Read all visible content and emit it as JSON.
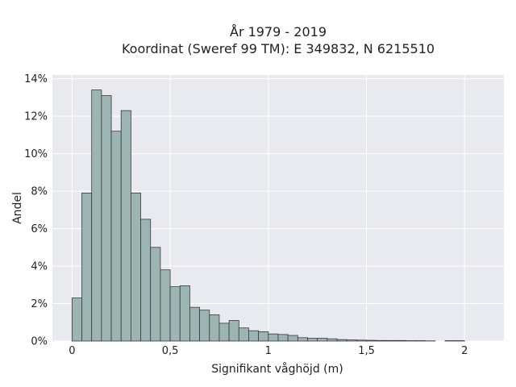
{
  "chart_data": {
    "type": "bar",
    "title_lines": [
      "År 1979 - 2019",
      "Koordinat (Sweref 99 TM): E 349832, N 6215510"
    ],
    "xlabel": "Signifikant våghöjd (m)",
    "ylabel": "Andel",
    "xlim": [
      -0.1,
      2.2
    ],
    "ylim": [
      0,
      14.2
    ],
    "x_ticks": [
      0,
      0.5,
      1,
      1.5,
      2
    ],
    "x_tick_labels": [
      "0",
      "0,5",
      "1",
      "1,5",
      "2"
    ],
    "y_ticks": [
      0,
      2,
      4,
      6,
      8,
      10,
      12,
      14
    ],
    "y_tick_labels": [
      "0%",
      "2%",
      "4%",
      "6%",
      "8%",
      "10%",
      "12%",
      "14%"
    ],
    "grid": true,
    "bin_width": 0.05,
    "bin_starts": [
      0,
      0.05,
      0.1,
      0.15,
      0.2,
      0.25,
      0.3,
      0.35,
      0.4,
      0.45,
      0.5,
      0.55,
      0.6,
      0.65,
      0.7,
      0.75,
      0.8,
      0.85,
      0.9,
      0.95,
      1.0,
      1.05,
      1.1,
      1.15,
      1.2,
      1.25,
      1.3,
      1.35,
      1.4,
      1.45,
      1.5,
      1.55,
      1.6,
      1.65,
      1.7,
      1.75,
      1.8,
      1.85,
      1.9,
      1.95,
      2.0,
      2.05
    ],
    "values": [
      2.3,
      7.9,
      13.4,
      13.1,
      11.2,
      12.3,
      7.9,
      6.5,
      5.0,
      3.8,
      2.9,
      2.95,
      1.8,
      1.65,
      1.4,
      0.95,
      1.1,
      0.7,
      0.55,
      0.5,
      0.38,
      0.35,
      0.3,
      0.18,
      0.15,
      0.15,
      0.12,
      0.08,
      0.06,
      0.05,
      0.04,
      0.03,
      0.03,
      0.03,
      0.02,
      0.02,
      0.01,
      0,
      0.02,
      0.02,
      0,
      0
    ],
    "colors": {
      "bar_fill": "#9cb5b3",
      "bar_edge": "#3a3a3a",
      "plot_bg": "#e9e9f0",
      "grid": "#ffffff",
      "text": "#222222"
    }
  }
}
